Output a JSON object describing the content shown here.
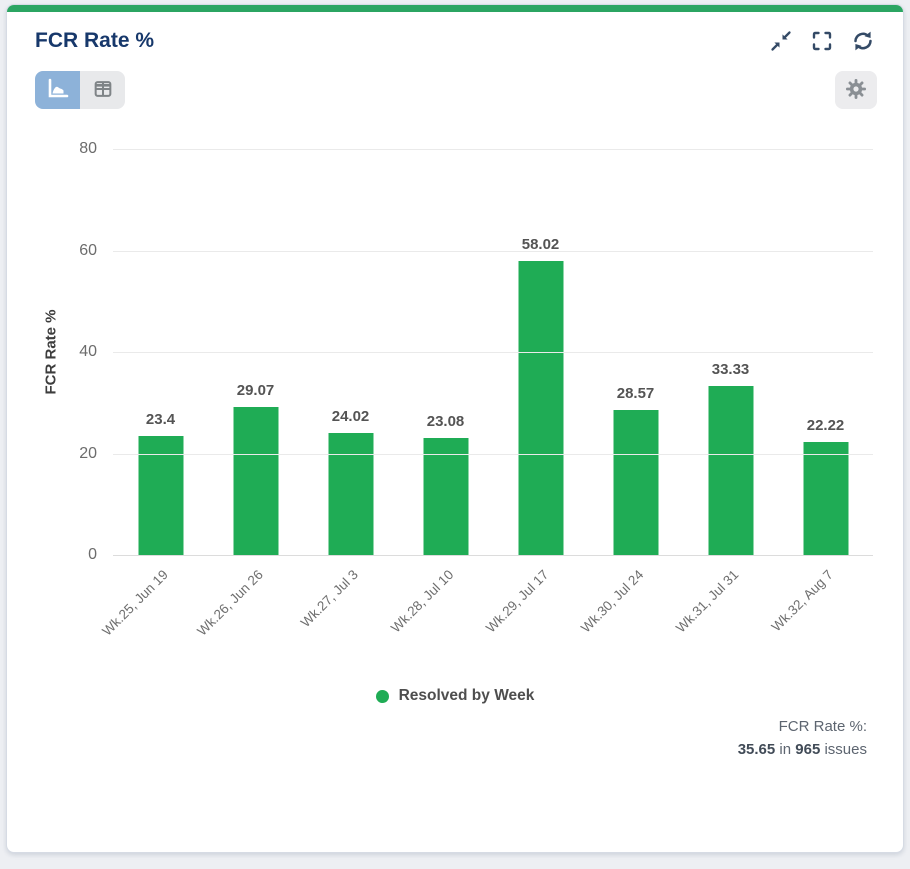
{
  "card": {
    "accent_color": "#2ba562",
    "title": "FCR Rate %"
  },
  "chart_data": {
    "type": "bar",
    "title": "FCR Rate %",
    "ylabel": "FCR Rate %",
    "categories": [
      "Wk.25, Jun 19",
      "Wk.26, Jun 26",
      "Wk.27, Jul 3",
      "Wk.28, Jul 10",
      "Wk.29, Jul 17",
      "Wk.30, Jul 24",
      "Wk.31, Jul 31",
      "Wk.32, Aug 7"
    ],
    "values": [
      23.4,
      29.07,
      24.02,
      23.08,
      58.02,
      28.57,
      33.33,
      22.22
    ],
    "value_labels": [
      "23.4",
      "29.07",
      "24.02",
      "23.08",
      "58.02",
      "28.57",
      "33.33",
      "22.22"
    ],
    "ylim": [
      0,
      80
    ],
    "yticks": [
      0,
      20,
      40,
      60,
      80
    ],
    "grid": true,
    "bar_color": "#1fac55",
    "legend": {
      "label": "Resolved by Week",
      "color": "#1fac55",
      "position": "bottom"
    }
  },
  "footer": {
    "line1": "FCR Rate %:",
    "value": "35.65",
    "conjunction": "in",
    "count": "965",
    "unit": "issues"
  }
}
